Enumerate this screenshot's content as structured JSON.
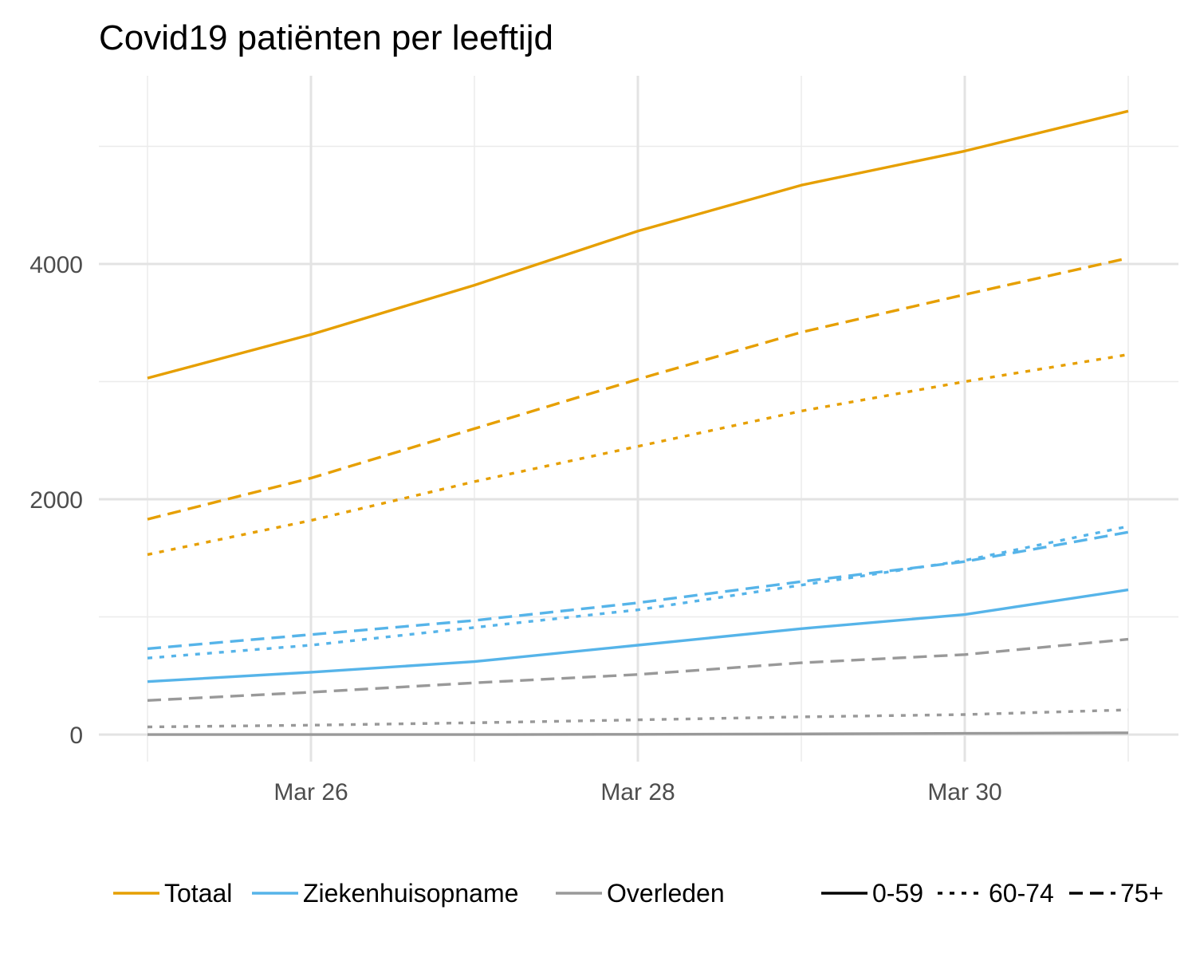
{
  "chart_data": {
    "type": "line",
    "title": "Covid19 patiënten per leeftijd",
    "xlabel": "",
    "ylabel": "",
    "x": [
      "2020-03-25",
      "2020-03-26",
      "2020-03-27",
      "2020-03-28",
      "2020-03-29",
      "2020-03-30",
      "2020-03-31"
    ],
    "x_ticks": [
      "2020-03-26",
      "2020-03-28",
      "2020-03-30"
    ],
    "x_tick_labels": [
      "Mar 26",
      "Mar 28",
      "Mar 30"
    ],
    "y_ticks": [
      0,
      2000,
      4000
    ],
    "y_tick_labels": [
      "0",
      "2000",
      "4000"
    ],
    "ylim": [
      -230,
      5600
    ],
    "grid": true,
    "legend_position": "bottom",
    "groups": [
      {
        "name": "Totaal",
        "color": "#E69F00"
      },
      {
        "name": "Ziekenhuisopname",
        "color": "#56B4E9"
      },
      {
        "name": "Overleden",
        "color": "#999999"
      }
    ],
    "age_groups": [
      {
        "name": "0-59",
        "linetype": "solid"
      },
      {
        "name": "60-74",
        "linetype": "dotted"
      },
      {
        "name": "75+",
        "linetype": "dashed"
      }
    ],
    "series": [
      {
        "group": "Totaal",
        "age": "0-59",
        "values": [
          3030,
          3400,
          3820,
          4280,
          4670,
          4960,
          5300
        ]
      },
      {
        "group": "Totaal",
        "age": "60-74",
        "values": [
          1530,
          1820,
          2150,
          2450,
          2750,
          3000,
          3230
        ]
      },
      {
        "group": "Totaal",
        "age": "75+",
        "values": [
          1830,
          2180,
          2600,
          3020,
          3420,
          3740,
          4050
        ]
      },
      {
        "group": "Ziekenhuisopname",
        "age": "0-59",
        "values": [
          450,
          530,
          620,
          760,
          900,
          1020,
          1230
        ]
      },
      {
        "group": "Ziekenhuisopname",
        "age": "60-74",
        "values": [
          650,
          760,
          910,
          1060,
          1270,
          1480,
          1770
        ]
      },
      {
        "group": "Ziekenhuisopname",
        "age": "75+",
        "values": [
          730,
          850,
          970,
          1120,
          1300,
          1470,
          1720
        ]
      },
      {
        "group": "Overleden",
        "age": "0-59",
        "values": [
          0,
          0,
          0,
          2,
          5,
          10,
          15
        ]
      },
      {
        "group": "Overleden",
        "age": "60-74",
        "values": [
          65,
          80,
          100,
          125,
          150,
          170,
          210
        ]
      },
      {
        "group": "Overleden",
        "age": "75+",
        "values": [
          290,
          360,
          440,
          510,
          610,
          680,
          810
        ]
      }
    ]
  }
}
